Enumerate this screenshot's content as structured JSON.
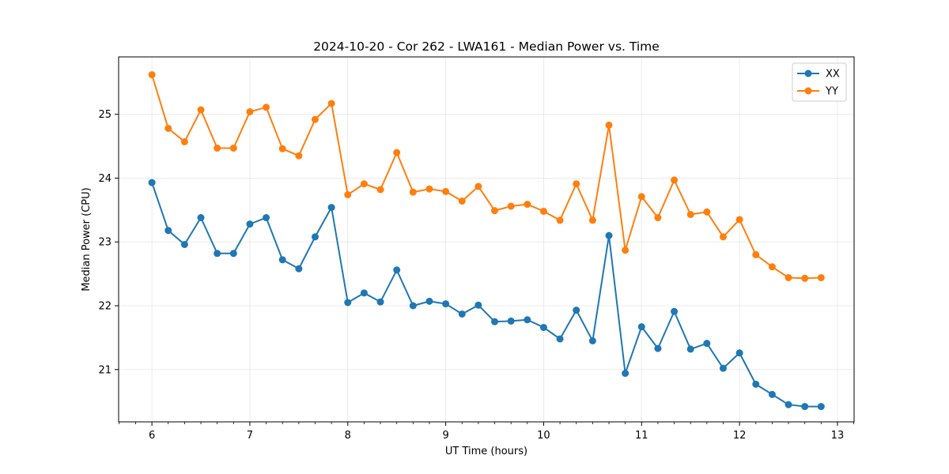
{
  "chart_data": {
    "type": "line",
    "title": "2024-10-20 - Cor 262 - LWA161 - Median Power vs. Time",
    "xlabel": "UT Time (hours)",
    "ylabel": "Median Power (CPU)",
    "xlim": [
      5.66,
      13.17
    ],
    "ylim": [
      20.18,
      25.9
    ],
    "xticks": [
      6,
      7,
      8,
      9,
      10,
      11,
      12,
      13
    ],
    "xtick_labels": [
      "6",
      "7",
      "8",
      "9",
      "10",
      "11",
      "12",
      "13"
    ],
    "yticks": [
      21,
      22,
      23,
      24,
      25
    ],
    "ytick_labels": [
      "21",
      "22",
      "23",
      "24",
      "25"
    ],
    "grid": true,
    "legend_position": "upper-right",
    "x": [
      6.0,
      6.1667,
      6.3333,
      6.5,
      6.6667,
      6.8333,
      7.0,
      7.1667,
      7.3333,
      7.5,
      7.6667,
      7.8333,
      8.0,
      8.1667,
      8.3333,
      8.5,
      8.6667,
      8.8333,
      9.0,
      9.1667,
      9.3333,
      9.5,
      9.6667,
      9.8333,
      10.0,
      10.1667,
      10.3333,
      10.5,
      10.6667,
      10.8333,
      11.0,
      11.1667,
      11.3333,
      11.5,
      11.6667,
      11.8333,
      12.0,
      12.1667,
      12.3333,
      12.5,
      12.6667,
      12.8333
    ],
    "series": [
      {
        "name": "XX",
        "color": "#1f77b4",
        "values": [
          23.93,
          23.18,
          22.96,
          23.38,
          22.82,
          22.82,
          23.28,
          23.38,
          22.72,
          22.58,
          23.08,
          23.54,
          22.05,
          22.2,
          22.06,
          22.56,
          22.0,
          22.07,
          22.03,
          21.87,
          22.01,
          21.75,
          21.76,
          21.78,
          21.66,
          21.48,
          21.93,
          21.45,
          23.1,
          20.94,
          21.67,
          21.33,
          21.91,
          21.32,
          21.41,
          21.02,
          21.26,
          20.77,
          20.61,
          20.45,
          20.42,
          20.42
        ]
      },
      {
        "name": "YY",
        "color": "#ff7f0e",
        "values": [
          25.62,
          24.78,
          24.57,
          25.07,
          24.47,
          24.47,
          25.04,
          25.11,
          24.46,
          24.35,
          24.92,
          25.17,
          23.74,
          23.91,
          23.82,
          24.4,
          23.78,
          23.83,
          23.79,
          23.64,
          23.87,
          23.49,
          23.56,
          23.59,
          23.48,
          23.34,
          23.91,
          23.34,
          24.83,
          22.87,
          23.71,
          23.38,
          23.97,
          23.43,
          23.47,
          23.08,
          23.35,
          22.8,
          22.61,
          22.44,
          22.43,
          22.44
        ]
      }
    ]
  }
}
